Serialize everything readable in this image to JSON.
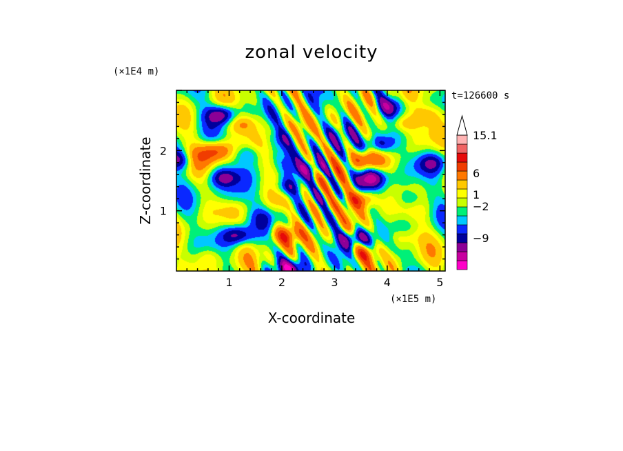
{
  "chart_data": {
    "type": "heatmap",
    "title": "zonal velocity",
    "xlabel": "X-coordinate",
    "ylabel": "Z-coordinate",
    "x_unit": "(×1E5 m)",
    "y_unit": "(×1E4 m)",
    "time_label": "t=126600 s",
    "xlim": [
      0.0,
      5.1
    ],
    "ylim": [
      0.0,
      3.0
    ],
    "x_ticks": [
      1,
      2,
      3,
      4,
      5
    ],
    "y_ticks": [
      1,
      2
    ],
    "x_tick_labels": [
      "1",
      "2",
      "3",
      "4",
      "5"
    ],
    "y_tick_labels": [
      "1",
      "2"
    ],
    "colorbar": {
      "levels_printed": [
        "15.1",
        "6",
        "1",
        "−2",
        "−9"
      ],
      "colors": [
        "#ff00c8",
        "#c800a0",
        "#8c0096",
        "#00009c",
        "#0a28ff",
        "#00c8ff",
        "#00f078",
        "#c8ff00",
        "#ffff00",
        "#ffc800",
        "#ff7800",
        "#f03c00",
        "#e60a0a",
        "#f06464",
        "#ffb4b4"
      ],
      "extend_top": true
    },
    "field_blobs": [
      {
        "x": 0.85,
        "z": 2.6,
        "value": -7
      },
      {
        "x": 0.75,
        "z": 2.0,
        "value": 6
      },
      {
        "x": 0.9,
        "z": 1.55,
        "value": -5
      },
      {
        "x": 0.45,
        "z": 1.9,
        "value": 3
      },
      {
        "x": 1.25,
        "z": 2.45,
        "value": 4
      },
      {
        "x": 1.35,
        "z": 1.95,
        "value": -3
      },
      {
        "x": 1.1,
        "z": 1.25,
        "value": -2
      },
      {
        "x": 1.15,
        "z": 0.6,
        "value": -6
      },
      {
        "x": 1.7,
        "z": 0.9,
        "value": -2
      },
      {
        "x": 2.05,
        "z": 0.6,
        "value": 6
      },
      {
        "x": 2.1,
        "z": 1.4,
        "value": -5
      },
      {
        "x": 2.55,
        "z": 1.7,
        "value": -6
      },
      {
        "x": 2.0,
        "z": 2.2,
        "value": -3
      },
      {
        "x": 3.5,
        "z": 1.2,
        "value": 7
      },
      {
        "x": 3.7,
        "z": 1.55,
        "value": -7
      },
      {
        "x": 3.55,
        "z": 1.85,
        "value": 6
      },
      {
        "x": 3.85,
        "z": 2.1,
        "value": -6
      },
      {
        "x": 4.0,
        "z": 2.75,
        "value": -5
      },
      {
        "x": 3.4,
        "z": 0.55,
        "value": -7
      },
      {
        "x": 3.55,
        "z": 0.3,
        "value": 5
      },
      {
        "x": 4.25,
        "z": 2.45,
        "value": 4
      },
      {
        "x": 4.75,
        "z": 2.6,
        "value": 3
      },
      {
        "x": 4.85,
        "z": 1.8,
        "value": -4
      },
      {
        "x": 4.45,
        "z": 1.2,
        "value": -3
      },
      {
        "x": 4.3,
        "z": 0.55,
        "value": 3
      },
      {
        "x": 0.05,
        "z": 1.85,
        "value": -5
      },
      {
        "x": 2.15,
        "z": 0.05,
        "value": -6
      },
      {
        "x": 3.05,
        "z": 2.3,
        "value": -2
      },
      {
        "x": 2.8,
        "z": 1.05,
        "value": 3
      },
      {
        "x": 0.6,
        "z": 0.25,
        "value": 2
      }
    ]
  }
}
